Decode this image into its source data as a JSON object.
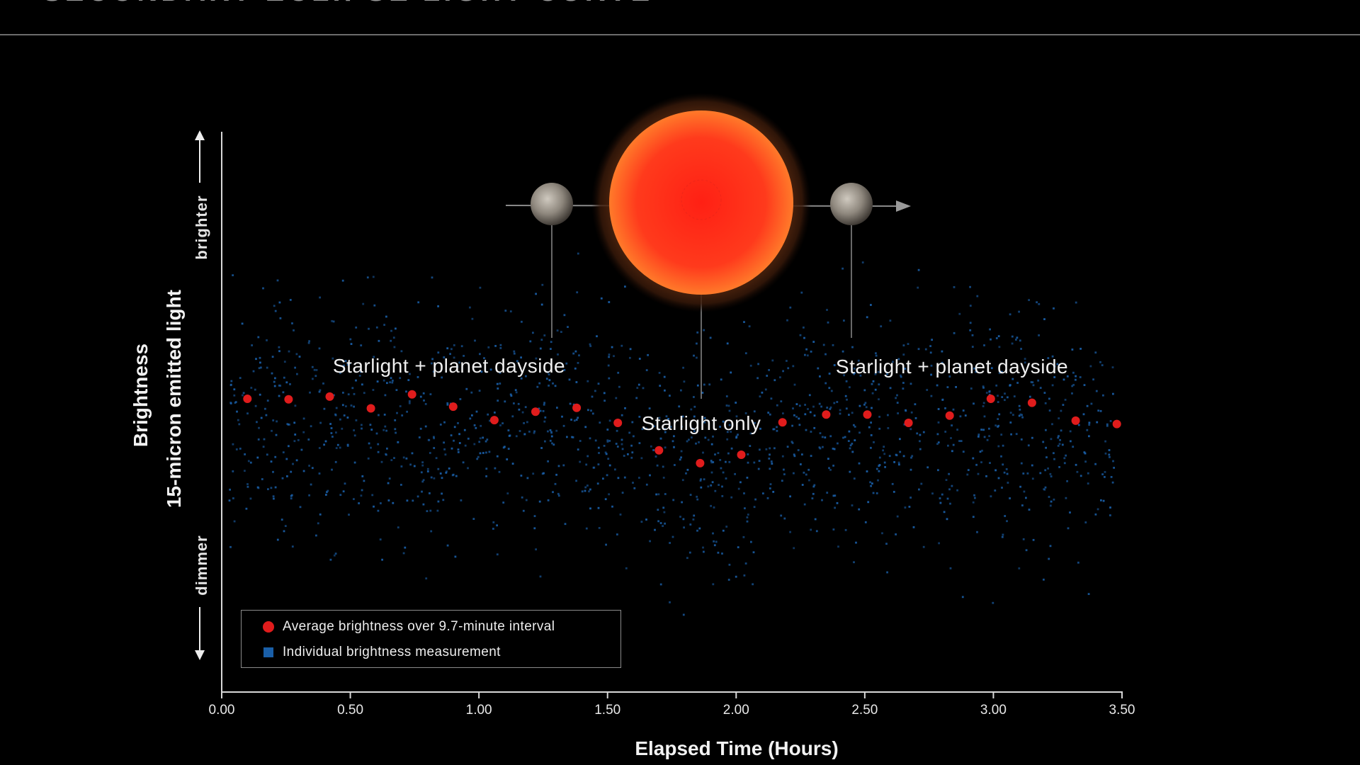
{
  "title": "SECONDARY ECLIPSE LIGHT CURVE",
  "colors": {
    "average": "#e01c1c",
    "individual": "#1a5fa8",
    "axis": "#d8d8d8",
    "background": "#000000",
    "star": "#ff2a1a",
    "planet": "#9a948c"
  },
  "icons": {
    "star": "red-star-icon",
    "planet_before": "planet-icon",
    "planet_after": "planet-icon",
    "orbit_arrow": "arrow-right-icon",
    "brighter_arrow": "arrow-up-icon",
    "dimmer_arrow": "arrow-down-icon"
  },
  "chart_data": {
    "type": "scatter",
    "xlabel": "Elapsed Time (Hours)",
    "ylabel": "Brightness",
    "ylabel_sub": "15-micron emitted light",
    "y_high_label": "brighter",
    "y_low_label": "dimmer",
    "xlim": [
      0,
      3.5
    ],
    "ylim": [
      0,
      100
    ],
    "x_ticks": [
      "0.00",
      "0.50",
      "1.00",
      "1.50",
      "2.00",
      "2.50",
      "3.00",
      "3.50"
    ],
    "grid": false,
    "legend_position": "bottom-left",
    "series": [
      {
        "name": "Average brightness over 9.7-minute interval",
        "marker": "circle",
        "x": [
          0.1,
          0.26,
          0.42,
          0.58,
          0.74,
          0.9,
          1.06,
          1.22,
          1.38,
          1.54,
          1.7,
          1.86,
          2.02,
          2.18,
          2.35,
          2.51,
          2.67,
          2.83,
          2.99,
          3.15,
          3.32,
          3.48
        ],
        "y": [
          52.4,
          52.3,
          52.8,
          50.7,
          53.2,
          51.0,
          48.6,
          50.1,
          50.8,
          48.1,
          43.2,
          40.9,
          42.4,
          48.2,
          49.6,
          49.6,
          48.1,
          49.4,
          52.4,
          51.7,
          48.5,
          47.9
        ]
      },
      {
        "name": "Individual brightness measurement",
        "marker": "square",
        "count": 1500,
        "x_range": [
          0.03,
          3.47
        ],
        "center": 47,
        "spread": 11
      }
    ],
    "annotations": [
      {
        "text": "Starlight + planet dayside",
        "x": 0.9,
        "y": 60
      },
      {
        "text": "Starlight only",
        "x": 1.87,
        "y": 49.5
      },
      {
        "text": "Starlight + planet dayside",
        "x": 2.84,
        "y": 60
      }
    ]
  },
  "legend": {
    "average_label": "Average brightness over 9.7-minute interval",
    "individual_label": "Individual brightness measurement"
  }
}
